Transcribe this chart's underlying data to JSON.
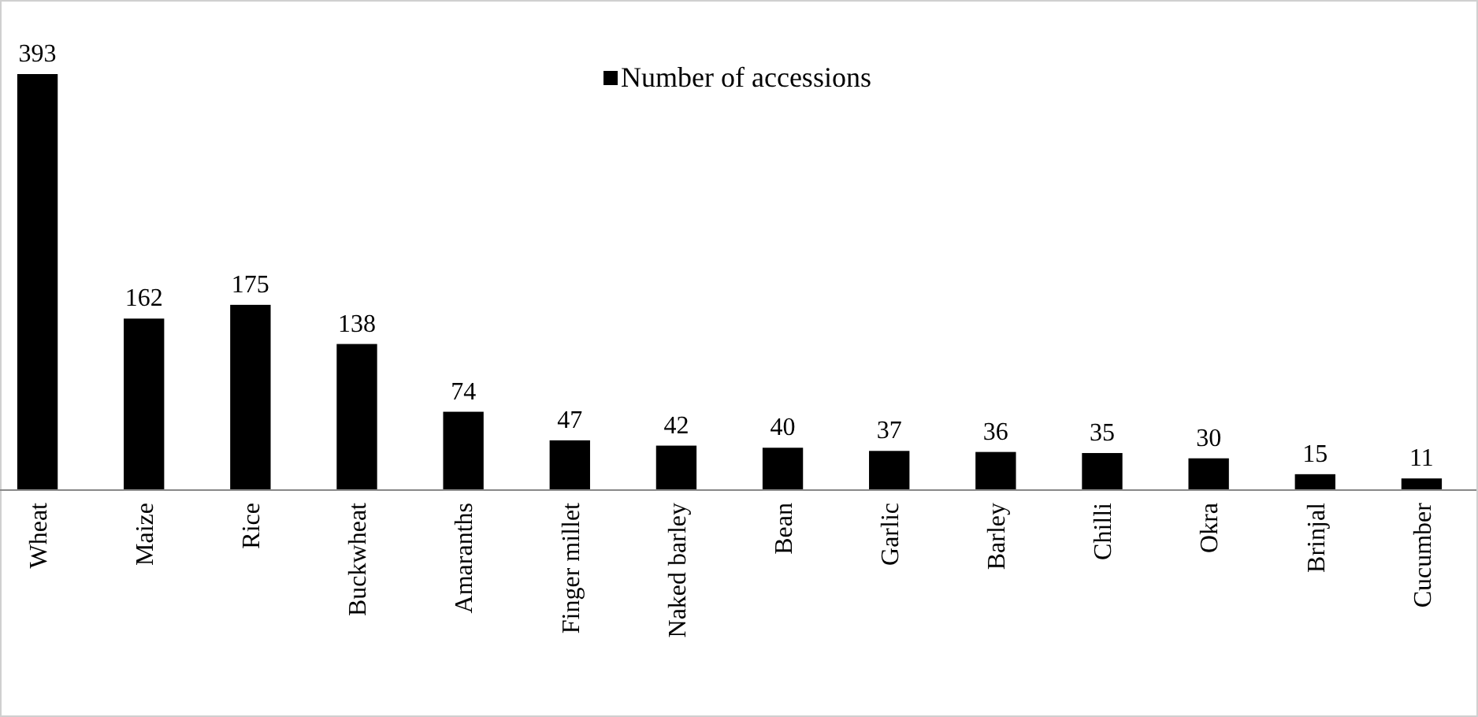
{
  "chart_data": {
    "type": "bar",
    "categories": [
      "Wheat",
      "Maize",
      "Rice",
      "Buckwheat",
      "Amaranths",
      "Finger millet",
      "Naked barley",
      "Bean",
      "Garlic",
      "Barley",
      "Chilli",
      "Okra",
      "Brinjal",
      "Cucumber"
    ],
    "series": [
      {
        "name": "Number of accessions",
        "color": "#000000",
        "values": [
          393,
          162,
          175,
          138,
          74,
          47,
          42,
          40,
          37,
          36,
          35,
          30,
          15,
          11
        ]
      }
    ],
    "data_labels": true,
    "legend": "top"
  }
}
